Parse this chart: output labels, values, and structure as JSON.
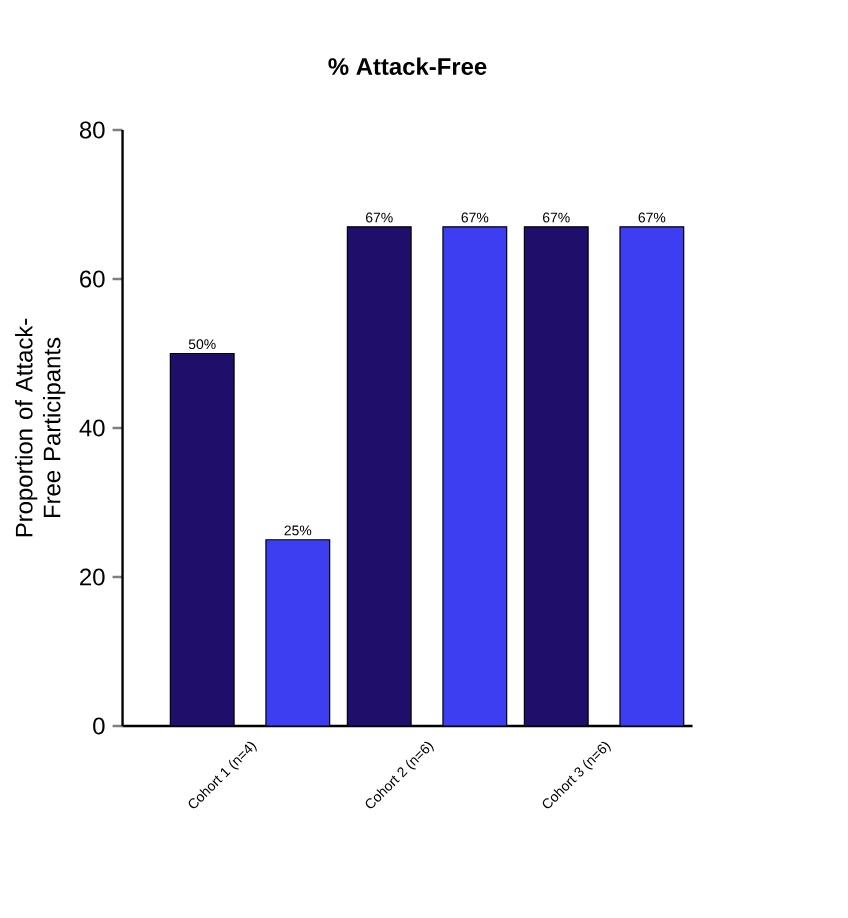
{
  "chart_data": {
    "type": "bar",
    "title": "% Attack-Free",
    "ylabel": "Proportion of Attack-Free Participants",
    "categories": [
      "Cohort 1 (n=4)",
      "Cohort 2 (n=6)",
      "Cohort 3 (n=6)"
    ],
    "series": [
      {
        "color": "#1f0f6b",
        "values": [
          50,
          67,
          67
        ],
        "value_labels": [
          "50%",
          "67%",
          "67%"
        ]
      },
      {
        "color": "#3d3df2",
        "values": [
          25,
          67,
          67
        ],
        "value_labels": [
          "25%",
          "67%",
          "67%"
        ]
      }
    ],
    "ylim": [
      0,
      80
    ],
    "yticks": [
      0,
      20,
      40,
      60,
      80
    ]
  }
}
